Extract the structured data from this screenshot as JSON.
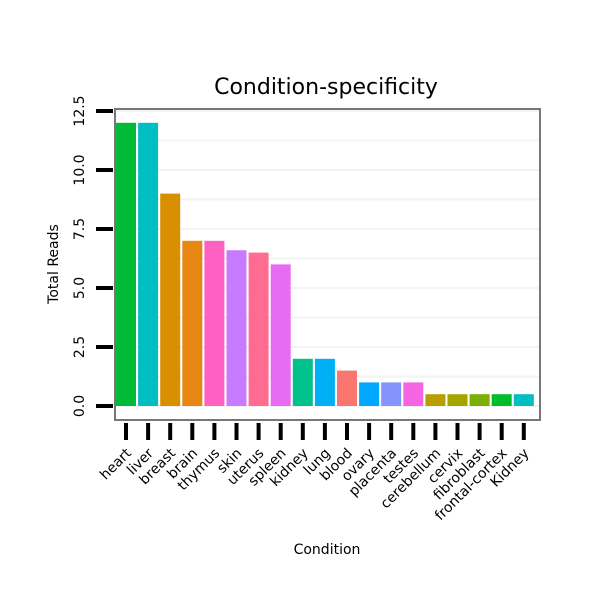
{
  "chart_data": {
    "type": "bar",
    "title": "Condition-specificity",
    "xlabel": "Condition",
    "ylabel": "Total Reads",
    "ylim": [
      0,
      12.5
    ],
    "yticks": [
      "0.0",
      "2.5",
      "5.0",
      "7.5",
      "10.0",
      "12.5"
    ],
    "grid": true,
    "legend": "none",
    "categories": [
      "heart",
      "liver",
      "breast",
      "brain",
      "thymus",
      "skin",
      "uterus",
      "spleen",
      "kidney",
      "lung",
      "blood",
      "ovary",
      "placenta",
      "testes",
      "cerebellum",
      "cervix",
      "fibroblast",
      "frontal-cortex",
      "Kidney"
    ],
    "values": [
      12,
      12,
      9,
      7,
      7,
      6.6,
      6.5,
      6,
      2,
      2,
      1.5,
      1,
      1,
      1,
      0.5,
      0.5,
      0.5,
      0.5,
      0.5
    ],
    "colors": [
      "#00BA38",
      "#00BFC4",
      "#D89000",
      "#E68613",
      "#FF61C3",
      "#C77CFF",
      "#FF6C91",
      "#E76BF3",
      "#00C08B",
      "#00B0F6",
      "#F8766D",
      "#00A9FF",
      "#8494FF",
      "#F564E3",
      "#B79F00",
      "#A3A500",
      "#7CAE00",
      "#00BC2D",
      "#00BFC4"
    ]
  }
}
